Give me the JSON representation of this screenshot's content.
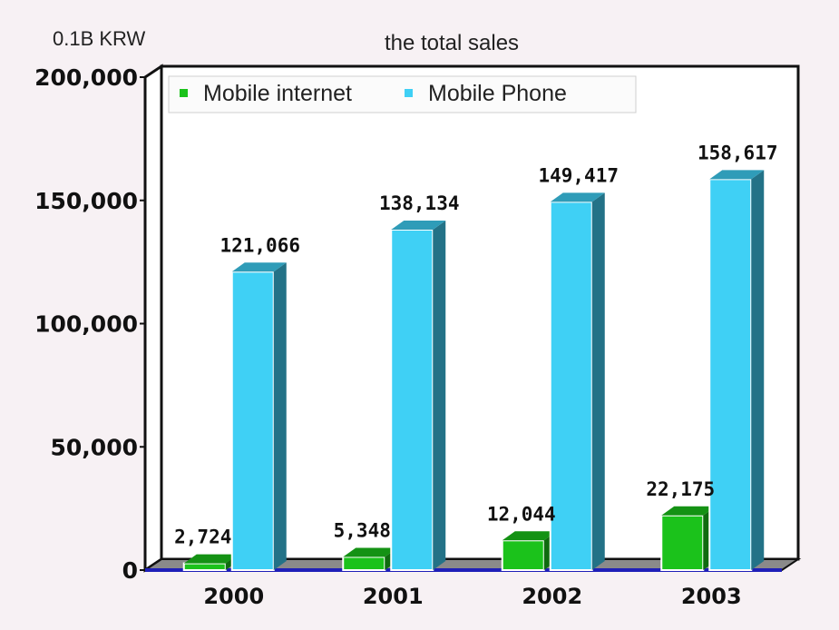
{
  "chart_data": {
    "type": "bar",
    "title": "the total sales",
    "unit_label": "0.1B KRW",
    "categories": [
      "2000",
      "2001",
      "2002",
      "2003"
    ],
    "series": [
      {
        "name": "Mobile internet",
        "values": [
          2724,
          5348,
          12044,
          22175
        ],
        "labels": [
          "2,724",
          "5,348",
          "12,044",
          "22,175"
        ],
        "color": "#1bc21b"
      },
      {
        "name": "Mobile Phone",
        "values": [
          121066,
          138134,
          149417,
          158617
        ],
        "labels": [
          "121,066",
          "138,134",
          "149,417",
          "158,617"
        ],
        "color": "#3fd0f5"
      }
    ],
    "ylim": [
      0,
      200000
    ],
    "yticks": [
      0,
      50000,
      100000,
      150000,
      200000
    ],
    "ytick_labels": [
      "0",
      "50,000",
      "100,000",
      "150,000",
      "200,000"
    ],
    "legend_position": "top-left",
    "grid": false,
    "style": "3d"
  }
}
